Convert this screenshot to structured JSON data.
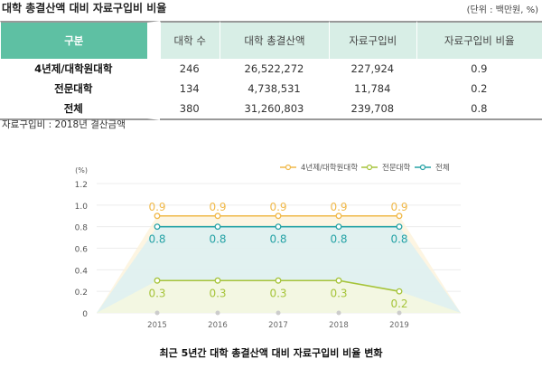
{
  "title": "대학 총결산액 대비 자료구입비 비율",
  "unit": "(단위 : 백만원, %)",
  "table": {
    "headers": [
      "구분",
      "대학 수",
      "대학 총결산액",
      "자료구입비",
      "자료구입비 비율"
    ],
    "rows": [
      [
        "4년제/대학원대학",
        "246",
        "26,522,272",
        "227,924",
        "0.9"
      ],
      [
        "전문대학",
        "134",
        "4,738,531",
        "11,784",
        "0.2"
      ],
      [
        "전체",
        "380",
        "31,260,803",
        "239,708",
        "0.8"
      ]
    ]
  },
  "note": "자료구입비 : 2018년 결산금액",
  "chart_data": {
    "type": "line",
    "title": "최근 5년간 대학 총결산액 대비 자료구입비 비율 변화",
    "ylabel": "(%)",
    "x": [
      "2015",
      "2016",
      "2017",
      "2018",
      "2019"
    ],
    "yticks": [
      "0",
      "0.2",
      "0.4",
      "0.6",
      "0.8",
      "1.0",
      "1.2"
    ],
    "ylim": [
      0,
      1.2
    ],
    "legend_position": "top-right",
    "series": [
      {
        "name": "4년제/대학원대학",
        "values": [
          0.9,
          0.9,
          0.9,
          0.9,
          0.9
        ],
        "labels": [
          "0.9",
          "0.9",
          "0.9",
          "0.9",
          "0.9"
        ],
        "color": "#f0b94a",
        "fill": "#fdf3dd"
      },
      {
        "name": "전문대학",
        "values": [
          0.3,
          0.3,
          0.3,
          0.3,
          0.2
        ],
        "labels": [
          "0.3",
          "0.3",
          "0.3",
          "0.3",
          "0.2"
        ],
        "color": "#a6c43a",
        "fill": "#f6f8df"
      },
      {
        "name": "전체",
        "values": [
          0.8,
          0.8,
          0.8,
          0.8,
          0.8
        ],
        "labels": [
          "0.8",
          "0.8",
          "0.8",
          "0.8",
          "0.8"
        ],
        "color": "#27a3a6",
        "fill": "#dcf0f2"
      }
    ]
  }
}
